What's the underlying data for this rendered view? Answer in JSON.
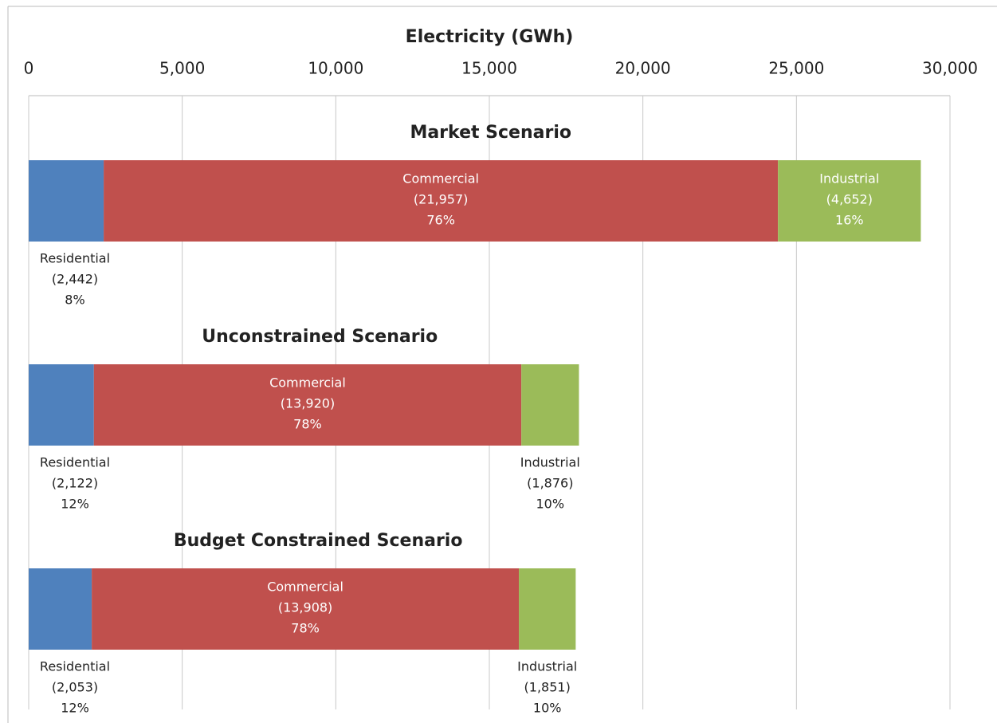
{
  "chart_data": {
    "type": "stacked-barh",
    "x_label": "Electricity (GWh)",
    "categories": [
      "Market Scenario",
      "Unconstrained Scenario",
      "Budget Constrained Scenario"
    ],
    "series": [
      {
        "name": "Residential",
        "color": "#4f81bd",
        "values": [
          2442,
          2122,
          2053
        ],
        "value_labels": [
          "(2,442)",
          "(2,122)",
          "(2,053)"
        ],
        "percent_labels": [
          "8%",
          "12%",
          "12%"
        ]
      },
      {
        "name": "Commercial",
        "color": "#c0504d",
        "values": [
          21957,
          13920,
          13908
        ],
        "value_labels": [
          "(21,957)",
          "(13,920)",
          "(13,908)"
        ],
        "percent_labels": [
          "76%",
          "78%",
          "78%"
        ]
      },
      {
        "name": "Industrial",
        "color": "#9bbb59",
        "values": [
          4652,
          1876,
          1851
        ],
        "value_labels": [
          "(4,652)",
          "(1,876)",
          "(1,851)"
        ],
        "percent_labels": [
          "16%",
          "10%",
          "10%"
        ]
      }
    ],
    "xlim": [
      0,
      30000
    ],
    "xticks": [
      0,
      {
        "value": 5000,
        "label": "5,000"
      },
      {
        "value": 10000,
        "label": "10,000"
      },
      {
        "value": 15000,
        "label": "15,000"
      },
      {
        "value": 20000,
        "label": "20,000"
      },
      {
        "value": 25000,
        "label": "25,000"
      },
      {
        "value": 30000,
        "label": "30,000"
      }
    ],
    "grid": true
  }
}
